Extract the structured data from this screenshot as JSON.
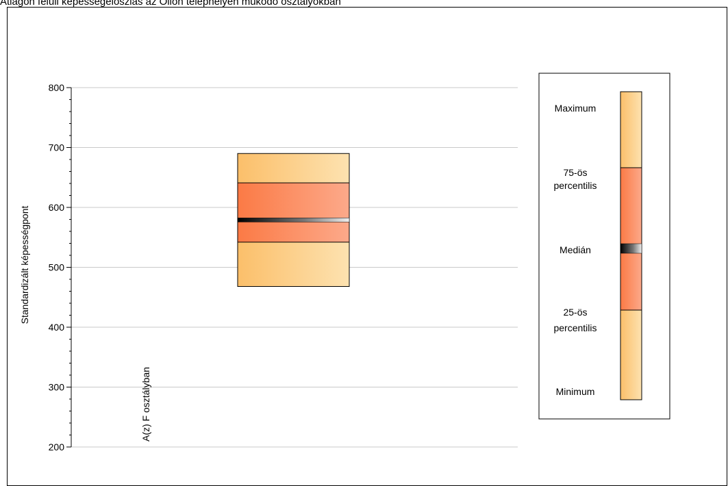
{
  "title": "Átlagon felüli képességeloszlás az Olion telephelyen működő osztályokban",
  "chart_data": {
    "type": "boxplot",
    "ylabel": "Standardizált képességpont",
    "ylim": [
      200,
      800
    ],
    "yticks": [
      200,
      300,
      400,
      500,
      600,
      700,
      800
    ],
    "grid": true,
    "legend_position": "right",
    "category_label": "A(z) F osztályban",
    "box": {
      "min": 468,
      "q1": 542,
      "median": 579,
      "q3": 641,
      "max": 690
    },
    "legend_items": [
      {
        "label": "Maximum"
      },
      {
        "label": "75-ös percentilis"
      },
      {
        "label": "Medián"
      },
      {
        "label": "25-ös percentilis"
      },
      {
        "label": "Minimum"
      }
    ],
    "colors": {
      "outer_light": "#fde2b0",
      "outer_dark": "#fbbf6a",
      "inner_light": "#fca98a",
      "inner_dark": "#fb7a45",
      "median_dark": "#000000",
      "grid": "#c8c8c8"
    }
  }
}
